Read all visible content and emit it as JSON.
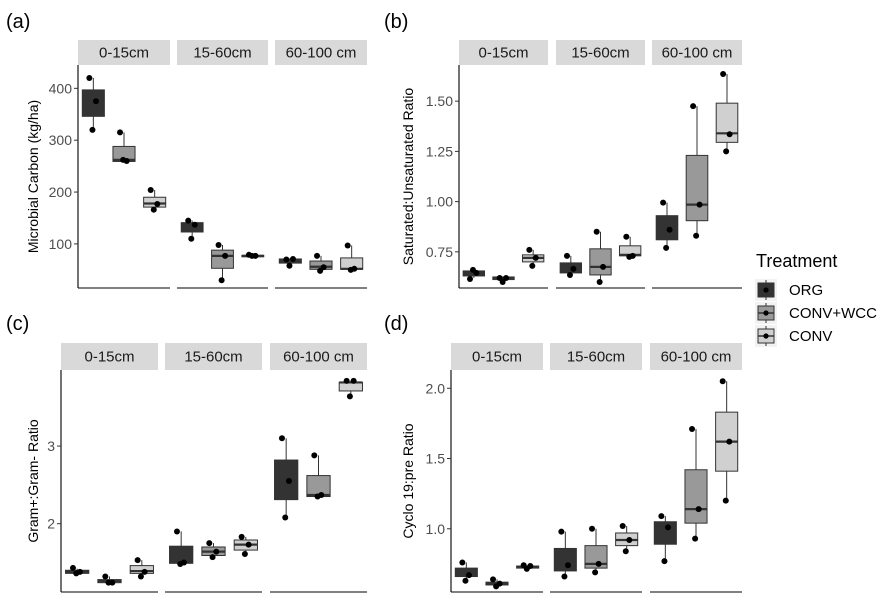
{
  "chart_data": [
    {
      "type": "box",
      "panel_label": "(a)",
      "ylabel": "Microbial Carbon (kg/ha)",
      "yticks": [
        100,
        200,
        300,
        400
      ],
      "ylim": [
        15,
        445
      ],
      "facets": [
        "0-15cm",
        "15-60cm",
        "60-100 cm"
      ],
      "groups": [
        "ORG",
        "CONV+WCC",
        "CONV"
      ],
      "boxes": [
        [
          {
            "q1": 346,
            "median": 372,
            "q3": 397,
            "lower": 320,
            "upper": 420,
            "points": [
              420,
              375,
              320
            ]
          },
          {
            "q1": 259,
            "median": 262,
            "q3": 288,
            "lower": 259,
            "upper": 315,
            "points": [
              315,
              260,
              262
            ]
          },
          {
            "q1": 171,
            "median": 178,
            "q3": 190,
            "lower": 166,
            "upper": 204,
            "points": [
              204,
              177,
              166
            ]
          }
        ],
        [
          {
            "q1": 123,
            "median": 131,
            "q3": 141,
            "lower": 110,
            "upper": 145,
            "points": [
              145,
              137,
              110
            ]
          },
          {
            "q1": 53,
            "median": 77,
            "q3": 88,
            "lower": 30,
            "upper": 98,
            "points": [
              98,
              77,
              30
            ]
          },
          {
            "q1": 76,
            "median": 77,
            "q3": 78,
            "lower": 76,
            "upper": 79,
            "points": [
              79,
              77,
              77
            ]
          }
        ],
        [
          {
            "q1": 63,
            "median": 65,
            "q3": 71,
            "lower": 58,
            "upper": 72,
            "points": [
              70,
              71,
              58
            ]
          },
          {
            "q1": 51,
            "median": 56,
            "q3": 67,
            "lower": 48,
            "upper": 77,
            "points": [
              77,
              55,
              48
            ]
          },
          {
            "q1": 51,
            "median": 52,
            "q3": 73,
            "lower": 50,
            "upper": 97,
            "points": [
              97,
              52,
              50
            ]
          }
        ]
      ]
    },
    {
      "type": "box",
      "panel_label": "(b)",
      "ylabel": "Saturated:Unsaturated Ratio",
      "yticks": [
        0.75,
        1.0,
        1.25,
        1.5
      ],
      "ytick_labels": [
        "0.75",
        "1.00",
        "1.25",
        "1.50"
      ],
      "ylim": [
        0.57,
        1.68
      ],
      "facets": [
        "0-15cm",
        "15-60cm",
        "60-100 cm"
      ],
      "groups": [
        "ORG",
        "CONV+WCC",
        "CONV"
      ],
      "boxes": [
        [
          {
            "q1": 0.63,
            "median": 0.64,
            "q3": 0.655,
            "lower": 0.62,
            "upper": 0.66,
            "points": [
              0.615,
              0.645,
              0.66
            ]
          },
          {
            "q1": 0.612,
            "median": 0.62,
            "q3": 0.625,
            "lower": 0.6,
            "upper": 0.62,
            "points": [
              0.62,
              0.62,
              0.6
            ]
          },
          {
            "q1": 0.7,
            "median": 0.72,
            "q3": 0.735,
            "lower": 0.68,
            "upper": 0.76,
            "points": [
              0.76,
              0.72,
              0.68
            ]
          }
        ],
        [
          {
            "q1": 0.645,
            "median": 0.665,
            "q3": 0.695,
            "lower": 0.635,
            "upper": 0.73,
            "points": [
              0.73,
              0.665,
              0.635
            ]
          },
          {
            "q1": 0.635,
            "median": 0.675,
            "q3": 0.765,
            "lower": 0.6,
            "upper": 0.85,
            "points": [
              0.85,
              0.675,
              0.6
            ]
          },
          {
            "q1": 0.73,
            "median": 0.735,
            "q3": 0.78,
            "lower": 0.725,
            "upper": 0.825,
            "points": [
              0.825,
              0.73,
              0.725
            ]
          }
        ],
        [
          {
            "q1": 0.81,
            "median": 0.86,
            "q3": 0.93,
            "lower": 0.77,
            "upper": 0.995,
            "points": [
              0.995,
              0.86,
              0.77
            ]
          },
          {
            "q1": 0.905,
            "median": 0.985,
            "q3": 1.23,
            "lower": 0.83,
            "upper": 1.475,
            "points": [
              1.475,
              0.985,
              0.83
            ]
          },
          {
            "q1": 1.295,
            "median": 1.34,
            "q3": 1.49,
            "lower": 1.25,
            "upper": 1.635,
            "points": [
              1.635,
              1.335,
              1.25
            ]
          }
        ]
      ]
    },
    {
      "type": "box",
      "panel_label": "(c)",
      "ylabel": "Gram+:Gram- Ratio",
      "yticks": [
        2,
        3
      ],
      "ylim": [
        1.12,
        3.98
      ],
      "facets": [
        "0-15cm",
        "15-60cm",
        "60-100 cm"
      ],
      "groups": [
        "ORG",
        "CONV+WCC",
        "CONV"
      ],
      "boxes": [
        [
          {
            "q1": 1.36,
            "median": 1.38,
            "q3": 1.4,
            "lower": 1.36,
            "upper": 1.42,
            "points": [
              1.43,
              1.38,
              1.36
            ]
          },
          {
            "q1": 1.24,
            "median": 1.26,
            "q3": 1.28,
            "lower": 1.24,
            "upper": 1.32,
            "points": [
              1.32,
              1.24,
              1.24
            ]
          },
          {
            "q1": 1.36,
            "median": 1.39,
            "q3": 1.46,
            "lower": 1.32,
            "upper": 1.53,
            "points": [
              1.53,
              1.38,
              1.32
            ]
          }
        ],
        [
          {
            "q1": 1.49,
            "median": 1.5,
            "q3": 1.71,
            "lower": 1.48,
            "upper": 1.9,
            "points": [
              1.9,
              1.5,
              1.48
            ]
          },
          {
            "q1": 1.59,
            "median": 1.64,
            "q3": 1.7,
            "lower": 1.57,
            "upper": 1.75,
            "points": [
              1.75,
              1.64,
              1.57
            ]
          },
          {
            "q1": 1.66,
            "median": 1.73,
            "q3": 1.79,
            "lower": 1.61,
            "upper": 1.83,
            "points": [
              1.83,
              1.73,
              1.61
            ]
          }
        ],
        [
          {
            "q1": 2.31,
            "median": 2.55,
            "q3": 2.82,
            "lower": 2.08,
            "upper": 3.1,
            "points": [
              3.1,
              2.55,
              2.08
            ]
          },
          {
            "q1": 2.35,
            "median": 2.37,
            "q3": 2.62,
            "lower": 2.35,
            "upper": 2.88,
            "points": [
              2.88,
              2.37,
              2.35
            ]
          },
          {
            "q1": 3.71,
            "median": 3.82,
            "q3": 3.82,
            "lower": 3.65,
            "upper": 3.84,
            "points": [
              3.84,
              3.84,
              3.64
            ]
          }
        ]
      ]
    },
    {
      "type": "box",
      "panel_label": "(d)",
      "ylabel": "Cyclo 19:pre Ratio",
      "yticks": [
        1.0,
        1.5,
        2.0
      ],
      "ytick_labels": [
        "1.0",
        "1.5",
        "2.0"
      ],
      "ylim": [
        0.55,
        2.13
      ],
      "facets": [
        "0-15cm",
        "15-60cm",
        "60-100 cm"
      ],
      "groups": [
        "ORG",
        "CONV+WCC",
        "CONV"
      ],
      "boxes": [
        [
          {
            "q1": 0.66,
            "median": 0.69,
            "q3": 0.72,
            "lower": 0.63,
            "upper": 0.76,
            "points": [
              0.76,
              0.67,
              0.63
            ]
          },
          {
            "q1": 0.6,
            "median": 0.61,
            "q3": 0.62,
            "lower": 0.59,
            "upper": 0.64,
            "points": [
              0.64,
              0.61,
              0.59
            ]
          },
          {
            "q1": 0.72,
            "median": 0.725,
            "q3": 0.735,
            "lower": 0.715,
            "upper": 0.74,
            "points": [
              0.74,
              0.735,
              0.715
            ]
          }
        ],
        [
          {
            "q1": 0.7,
            "median": 0.75,
            "q3": 0.86,
            "lower": 0.66,
            "upper": 0.98,
            "points": [
              0.98,
              0.74,
              0.66
            ]
          },
          {
            "q1": 0.72,
            "median": 0.75,
            "q3": 0.88,
            "lower": 0.69,
            "upper": 1.0,
            "points": [
              1.0,
              0.75,
              0.69
            ]
          },
          {
            "q1": 0.88,
            "median": 0.92,
            "q3": 0.97,
            "lower": 0.84,
            "upper": 1.02,
            "points": [
              1.02,
              0.92,
              0.84
            ]
          }
        ],
        [
          {
            "q1": 0.89,
            "median": 1.01,
            "q3": 1.05,
            "lower": 0.77,
            "upper": 1.09,
            "points": [
              1.09,
              1.01,
              0.77
            ]
          },
          {
            "q1": 1.04,
            "median": 1.14,
            "q3": 1.42,
            "lower": 0.93,
            "upper": 1.71,
            "points": [
              1.71,
              1.14,
              0.93
            ]
          },
          {
            "q1": 1.41,
            "median": 1.62,
            "q3": 1.83,
            "lower": 1.2,
            "upper": 2.05,
            "points": [
              2.05,
              1.62,
              1.2
            ]
          }
        ]
      ]
    }
  ],
  "legend": {
    "title": "Treatment",
    "placement": "right",
    "items": [
      {
        "label": "ORG",
        "color": "#333333"
      },
      {
        "label": "CONV+WCC",
        "color": "#999999"
      },
      {
        "label": "CONV",
        "color": "#d0d0d0"
      }
    ]
  },
  "colors": {
    "strip": "#d9d9d9",
    "box_outline": "#333333",
    "point": "#000000",
    "axis": "#000000"
  }
}
